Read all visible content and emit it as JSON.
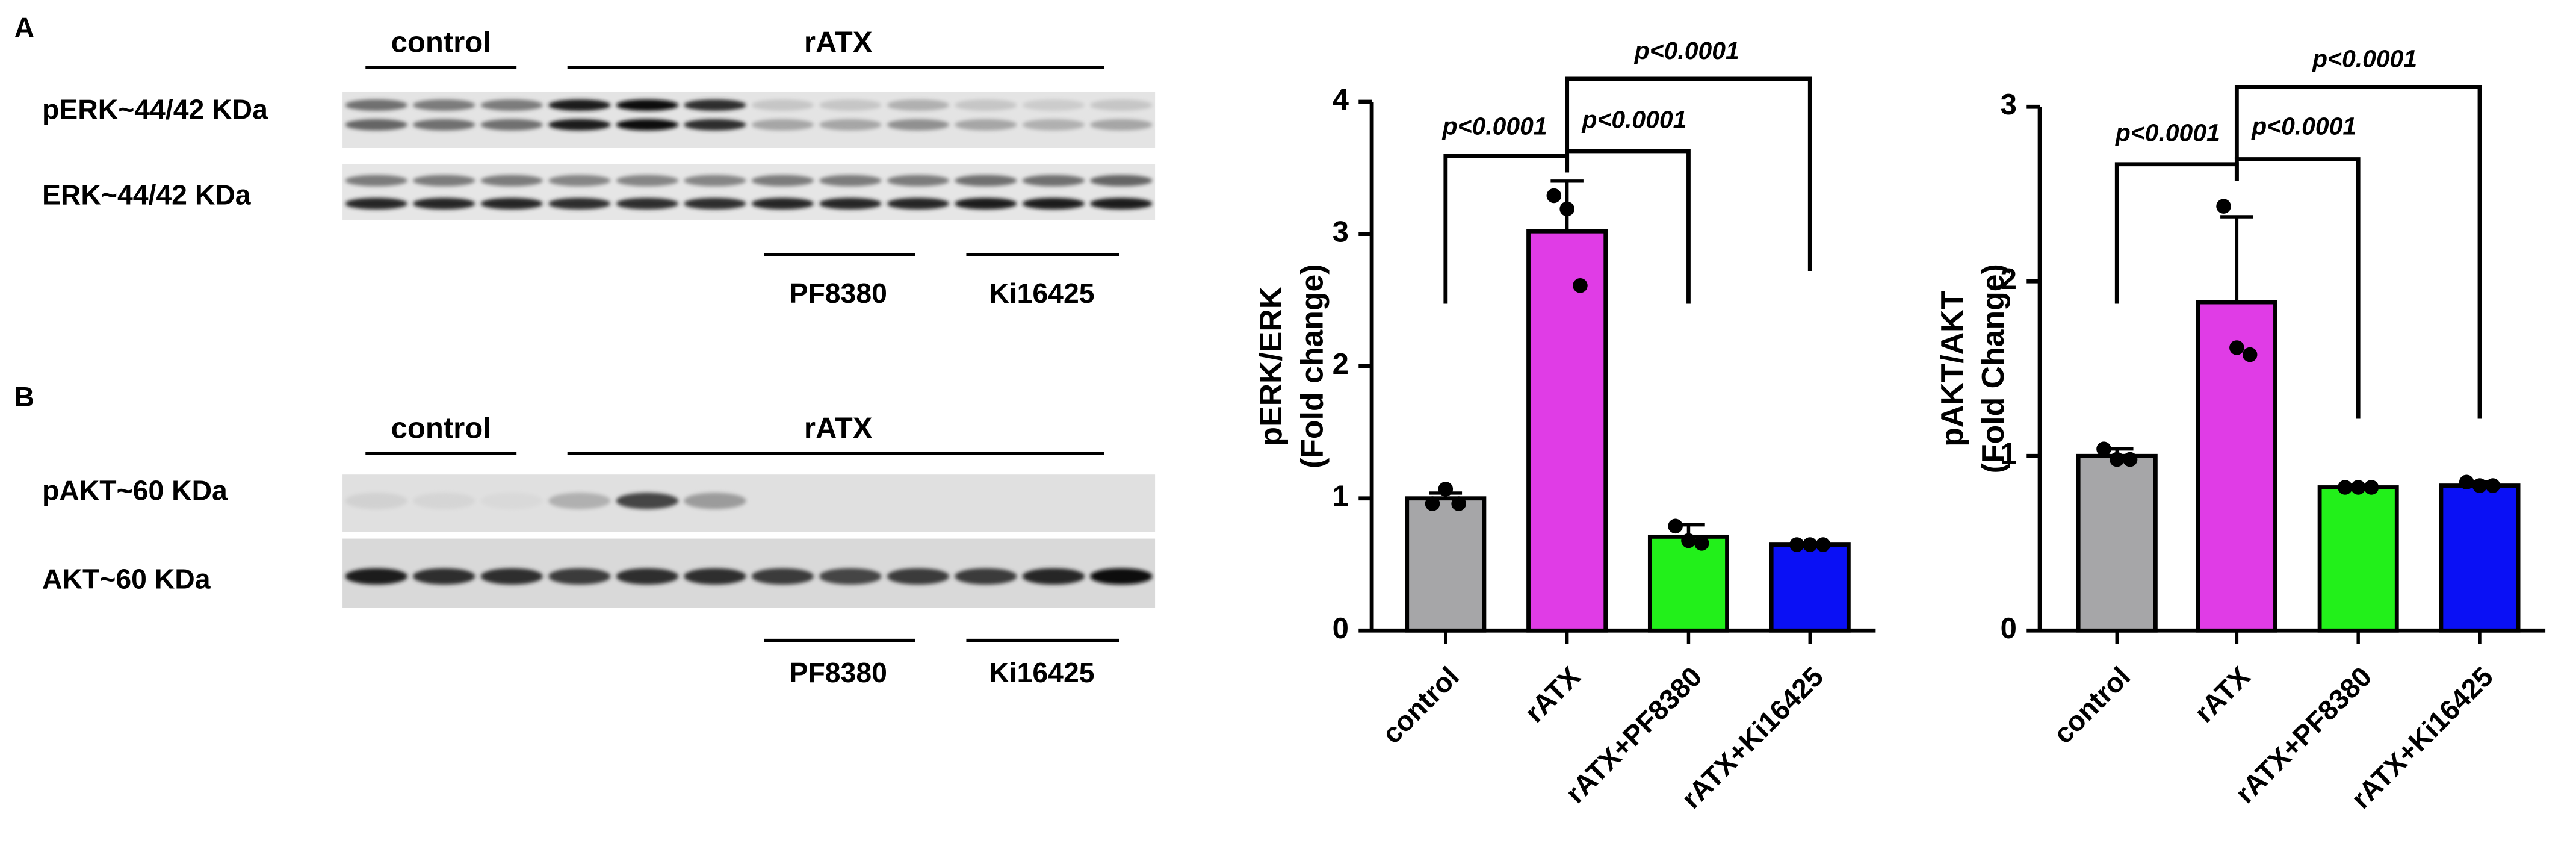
{
  "panels": {
    "A": {
      "label": "A",
      "groups": [
        "control",
        "rATX"
      ],
      "rows": [
        "pERK~44/42 KDa",
        "ERK~44/42 KDa"
      ],
      "inhibitors": [
        "PF8380",
        "Ki16425"
      ]
    },
    "B": {
      "label": "B",
      "groups": [
        "control",
        "rATX"
      ],
      "rows": [
        "pAKT~60 KDa",
        "AKT~60 KDa"
      ],
      "inhibitors": [
        "PF8380",
        "Ki16425"
      ]
    }
  },
  "chart_data": [
    {
      "type": "bar",
      "ylabel": [
        "pERK/ERK",
        "(Fold change)"
      ],
      "categories": [
        "control",
        "rATX",
        "rATX+PF8380",
        "rATX+Ki16425"
      ],
      "values": [
        1.0,
        3.02,
        0.71,
        0.65
      ],
      "errors": [
        0.04,
        0.38,
        0.09,
        0.01
      ],
      "points": [
        [
          0.96,
          1.07,
          0.96
        ],
        [
          3.29,
          3.19,
          2.61
        ],
        [
          0.79,
          0.68,
          0.66
        ],
        [
          0.65,
          0.65,
          0.65
        ]
      ],
      "colors": [
        "#a6a6a8",
        "#e03ce6",
        "#22f01a",
        "#0a10f5"
      ],
      "ylim": [
        0,
        4
      ],
      "yticks": [
        0,
        1,
        2,
        3,
        4
      ],
      "annotations": [
        "p<0.0001",
        "p<0.0001",
        "p<0.0001"
      ]
    },
    {
      "type": "bar",
      "ylabel": [
        "pAKT/AKT",
        "(Fold Change)"
      ],
      "categories": [
        "control",
        "rATX",
        "rATX+PF8380",
        "rATX+Ki16425"
      ],
      "values": [
        1.0,
        1.88,
        0.82,
        0.83
      ],
      "errors": [
        0.04,
        0.49,
        0.01,
        0.02
      ],
      "points": [
        [
          1.04,
          0.98,
          0.98
        ],
        [
          2.43,
          1.62,
          1.58
        ],
        [
          0.82,
          0.82,
          0.82
        ],
        [
          0.85,
          0.83,
          0.83
        ]
      ],
      "colors": [
        "#a6a6a8",
        "#e03ce6",
        "#22f01a",
        "#0a10f5"
      ],
      "ylim": [
        0,
        3
      ],
      "yticks": [
        0,
        1,
        2,
        3
      ],
      "annotations": [
        "p<0.0001",
        "p<0.0001",
        "p<0.0001"
      ]
    }
  ]
}
